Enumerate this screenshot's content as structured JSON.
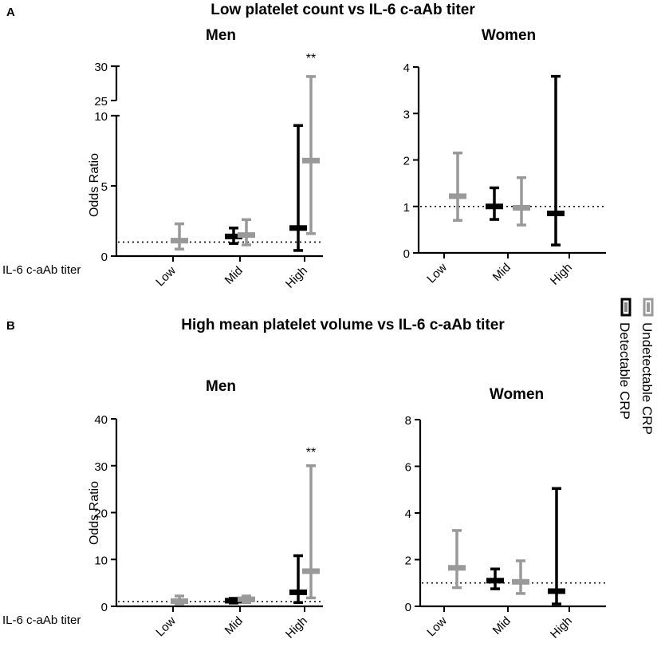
{
  "figure": {
    "series_colors": {
      "detectable": "#000000",
      "undetectable": "#999999"
    },
    "legend": {
      "items": [
        {
          "label": "Detectable CRP",
          "color": "#000000"
        },
        {
          "label": "Undetectable CRP",
          "color": "#999999"
        }
      ]
    },
    "panels": [
      {
        "letter": "A",
        "title": "Low platelet count vs IL-6 c-aAb titer"
      },
      {
        "letter": "B",
        "title": "High mean platelet volume vs IL-6 c-aAb titer"
      }
    ]
  },
  "chart_data": [
    {
      "type": "scatter",
      "panel": "A",
      "title": "Men",
      "ylabel": "Odds Ratio",
      "xlabel": "IL-6 c-aAb titer",
      "categories": [
        "Low",
        "Mid",
        "High"
      ],
      "axis_break": {
        "lower": [
          0,
          10
        ],
        "upper": [
          25,
          30
        ]
      },
      "yticks_lower": [
        0,
        5,
        10
      ],
      "yticks_upper": [
        25,
        30
      ],
      "reference_line": 1,
      "series": [
        {
          "name": "Detectable CRP",
          "points": [
            {
              "category": "Mid",
              "or": 1.4,
              "low": 0.9,
              "high": 2.0
            },
            {
              "category": "High",
              "or": 2.0,
              "low": 0.4,
              "high": 9.3
            }
          ]
        },
        {
          "name": "Undetectable CRP",
          "points": [
            {
              "category": "Low",
              "or": 1.1,
              "low": 0.5,
              "high": 2.3
            },
            {
              "category": "Mid",
              "or": 1.5,
              "low": 0.8,
              "high": 2.6
            },
            {
              "category": "High",
              "or": 6.8,
              "low": 1.6,
              "high": 28.5
            }
          ]
        }
      ],
      "annotations": [
        {
          "text": "**",
          "category": "High",
          "series": "Undetectable CRP"
        }
      ]
    },
    {
      "type": "scatter",
      "panel": "A",
      "title": "Women",
      "ylabel": "",
      "categories": [
        "Low",
        "Mid",
        "High"
      ],
      "ylim": [
        0,
        4
      ],
      "yticks": [
        0,
        1,
        2,
        3,
        4
      ],
      "reference_line": 1,
      "series": [
        {
          "name": "Detectable CRP",
          "points": [
            {
              "category": "Mid",
              "or": 1.0,
              "low": 0.72,
              "high": 1.4
            },
            {
              "category": "High",
              "or": 0.85,
              "low": 0.17,
              "high": 3.8
            }
          ]
        },
        {
          "name": "Undetectable CRP",
          "points": [
            {
              "category": "Low",
              "or": 1.22,
              "low": 0.7,
              "high": 2.15
            },
            {
              "category": "Mid",
              "or": 0.97,
              "low": 0.6,
              "high": 1.62
            }
          ]
        }
      ]
    },
    {
      "type": "scatter",
      "panel": "B",
      "title": "Men",
      "ylabel": "Odds Ratio",
      "xlabel": "IL-6 c-aAb titer",
      "categories": [
        "Low",
        "Mid",
        "High"
      ],
      "ylim": [
        0,
        40
      ],
      "yticks": [
        0,
        10,
        20,
        30,
        40
      ],
      "reference_line": 1,
      "series": [
        {
          "name": "Detectable CRP",
          "points": [
            {
              "category": "Mid",
              "or": 1.2,
              "low": 0.7,
              "high": 1.7
            },
            {
              "category": "High",
              "or": 3.0,
              "low": 0.8,
              "high": 10.8
            }
          ]
        },
        {
          "name": "Undetectable CRP",
          "points": [
            {
              "category": "Low",
              "or": 1.1,
              "low": 0.5,
              "high": 2.2
            },
            {
              "category": "Mid",
              "or": 1.5,
              "low": 0.8,
              "high": 2.2
            },
            {
              "category": "High",
              "or": 7.5,
              "low": 1.8,
              "high": 30.0
            }
          ]
        }
      ],
      "annotations": [
        {
          "text": "**",
          "category": "High",
          "series": "Undetectable CRP"
        }
      ]
    },
    {
      "type": "scatter",
      "panel": "B",
      "title": "Women",
      "ylabel": "",
      "categories": [
        "Low",
        "Mid",
        "High"
      ],
      "ylim": [
        0,
        8
      ],
      "yticks": [
        0,
        2,
        4,
        6,
        8
      ],
      "reference_line": 1,
      "series": [
        {
          "name": "Detectable CRP",
          "points": [
            {
              "category": "Mid",
              "or": 1.1,
              "low": 0.75,
              "high": 1.6
            },
            {
              "category": "High",
              "or": 0.65,
              "low": 0.1,
              "high": 5.05
            }
          ]
        },
        {
          "name": "Undetectable CRP",
          "points": [
            {
              "category": "Low",
              "or": 1.65,
              "low": 0.8,
              "high": 3.25
            },
            {
              "category": "Mid",
              "or": 1.05,
              "low": 0.55,
              "high": 1.95
            }
          ]
        }
      ]
    }
  ]
}
